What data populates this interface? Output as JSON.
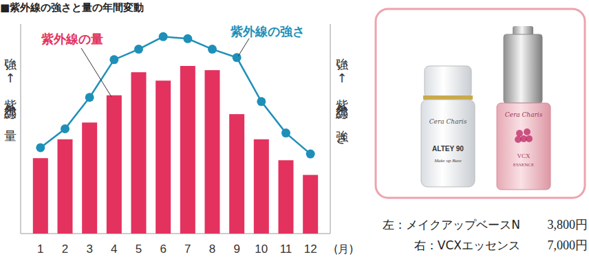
{
  "chart_data": {
    "type": "bar",
    "title": "■紫外線の強さと量の年間変動",
    "categories": [
      "1",
      "2",
      "3",
      "4",
      "5",
      "6",
      "7",
      "8",
      "9",
      "10",
      "11",
      "12"
    ],
    "x_label": "(月)",
    "ylabel": "強い↑紫外線の量",
    "y2label": "強い↑紫外線の強さ",
    "series": [
      {
        "name": "紫外線の量",
        "type": "bar",
        "color": "#e3325e",
        "values": [
          36,
          45,
          53,
          66,
          77,
          73,
          80,
          78,
          57,
          45,
          35,
          28
        ]
      },
      {
        "name": "紫外線の強さ",
        "type": "line",
        "axis": "y2",
        "color": "#1e8fb8",
        "marker": "circle",
        "values": [
          41,
          50,
          65,
          83,
          88,
          94,
          93,
          88,
          84,
          63,
          48,
          38
        ]
      }
    ],
    "ylim": [
      0,
      100
    ],
    "y2lim": [
      0,
      100
    ],
    "tick_labels": "x"
  },
  "product_panel": {
    "items": [
      {
        "caption": "左：メイクアップベースN",
        "price": "3,800円",
        "brand": "Cera Charis",
        "bottle_text": [
          "ALTEY 90",
          "Make up Base"
        ]
      },
      {
        "caption": "右：VCXエッセンス",
        "price": "7,000円",
        "brand": "Cera Charis",
        "bottle_text": [
          "VCX",
          "ESSENCE"
        ]
      }
    ]
  }
}
